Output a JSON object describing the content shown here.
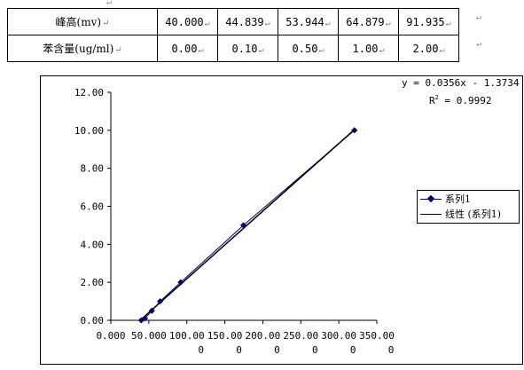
{
  "table": {
    "rows": [
      {
        "label": "峰高(mv)",
        "values": [
          "40.000",
          "44.839",
          "53.944",
          "64.879",
          "91.935"
        ]
      },
      {
        "label": "苯含量(ug/ml)",
        "values": [
          "0.00",
          "0.10",
          "0.50",
          "1.00",
          "2.00"
        ]
      }
    ]
  },
  "chart_data": {
    "type": "scatter",
    "title": "",
    "xlabel": "",
    "ylabel": "",
    "xlim": [
      0,
      350
    ],
    "ylim": [
      0,
      12
    ],
    "x_tick_labels": [
      {
        "line1": "0.000",
        "line2": ""
      },
      {
        "line1": "50.000",
        "line2": ""
      },
      {
        "line1": "100.00",
        "line2": "0"
      },
      {
        "line1": "150.00",
        "line2": "0"
      },
      {
        "line1": "200.00",
        "line2": "0"
      },
      {
        "line1": "250.00",
        "line2": "0"
      },
      {
        "line1": "300.00",
        "line2": "0"
      },
      {
        "line1": "350.00",
        "line2": "0"
      }
    ],
    "y_tick_labels": [
      "0.00",
      "2.00",
      "4.00",
      "6.00",
      "8.00",
      "10.00",
      "12.00"
    ],
    "series": [
      {
        "name": "系列1",
        "color": "#000066",
        "points": [
          {
            "x": 40.0,
            "y": 0.0
          },
          {
            "x": 44.839,
            "y": 0.1
          },
          {
            "x": 53.944,
            "y": 0.5
          },
          {
            "x": 64.879,
            "y": 1.0
          },
          {
            "x": 91.935,
            "y": 2.0
          },
          {
            "x": 174.5,
            "y": 5.0
          },
          {
            "x": 320.5,
            "y": 10.0
          }
        ]
      }
    ],
    "trendline": {
      "name": "线性 (系列1)",
      "slope": 0.0356,
      "intercept": -1.3734,
      "color": "#000000"
    },
    "equation": "y = 0.0356x - 1.3734",
    "r2_label": "R",
    "r2_sup": "2",
    "r2_value": " = 0.9992",
    "legend_position": "right",
    "grid": false
  }
}
